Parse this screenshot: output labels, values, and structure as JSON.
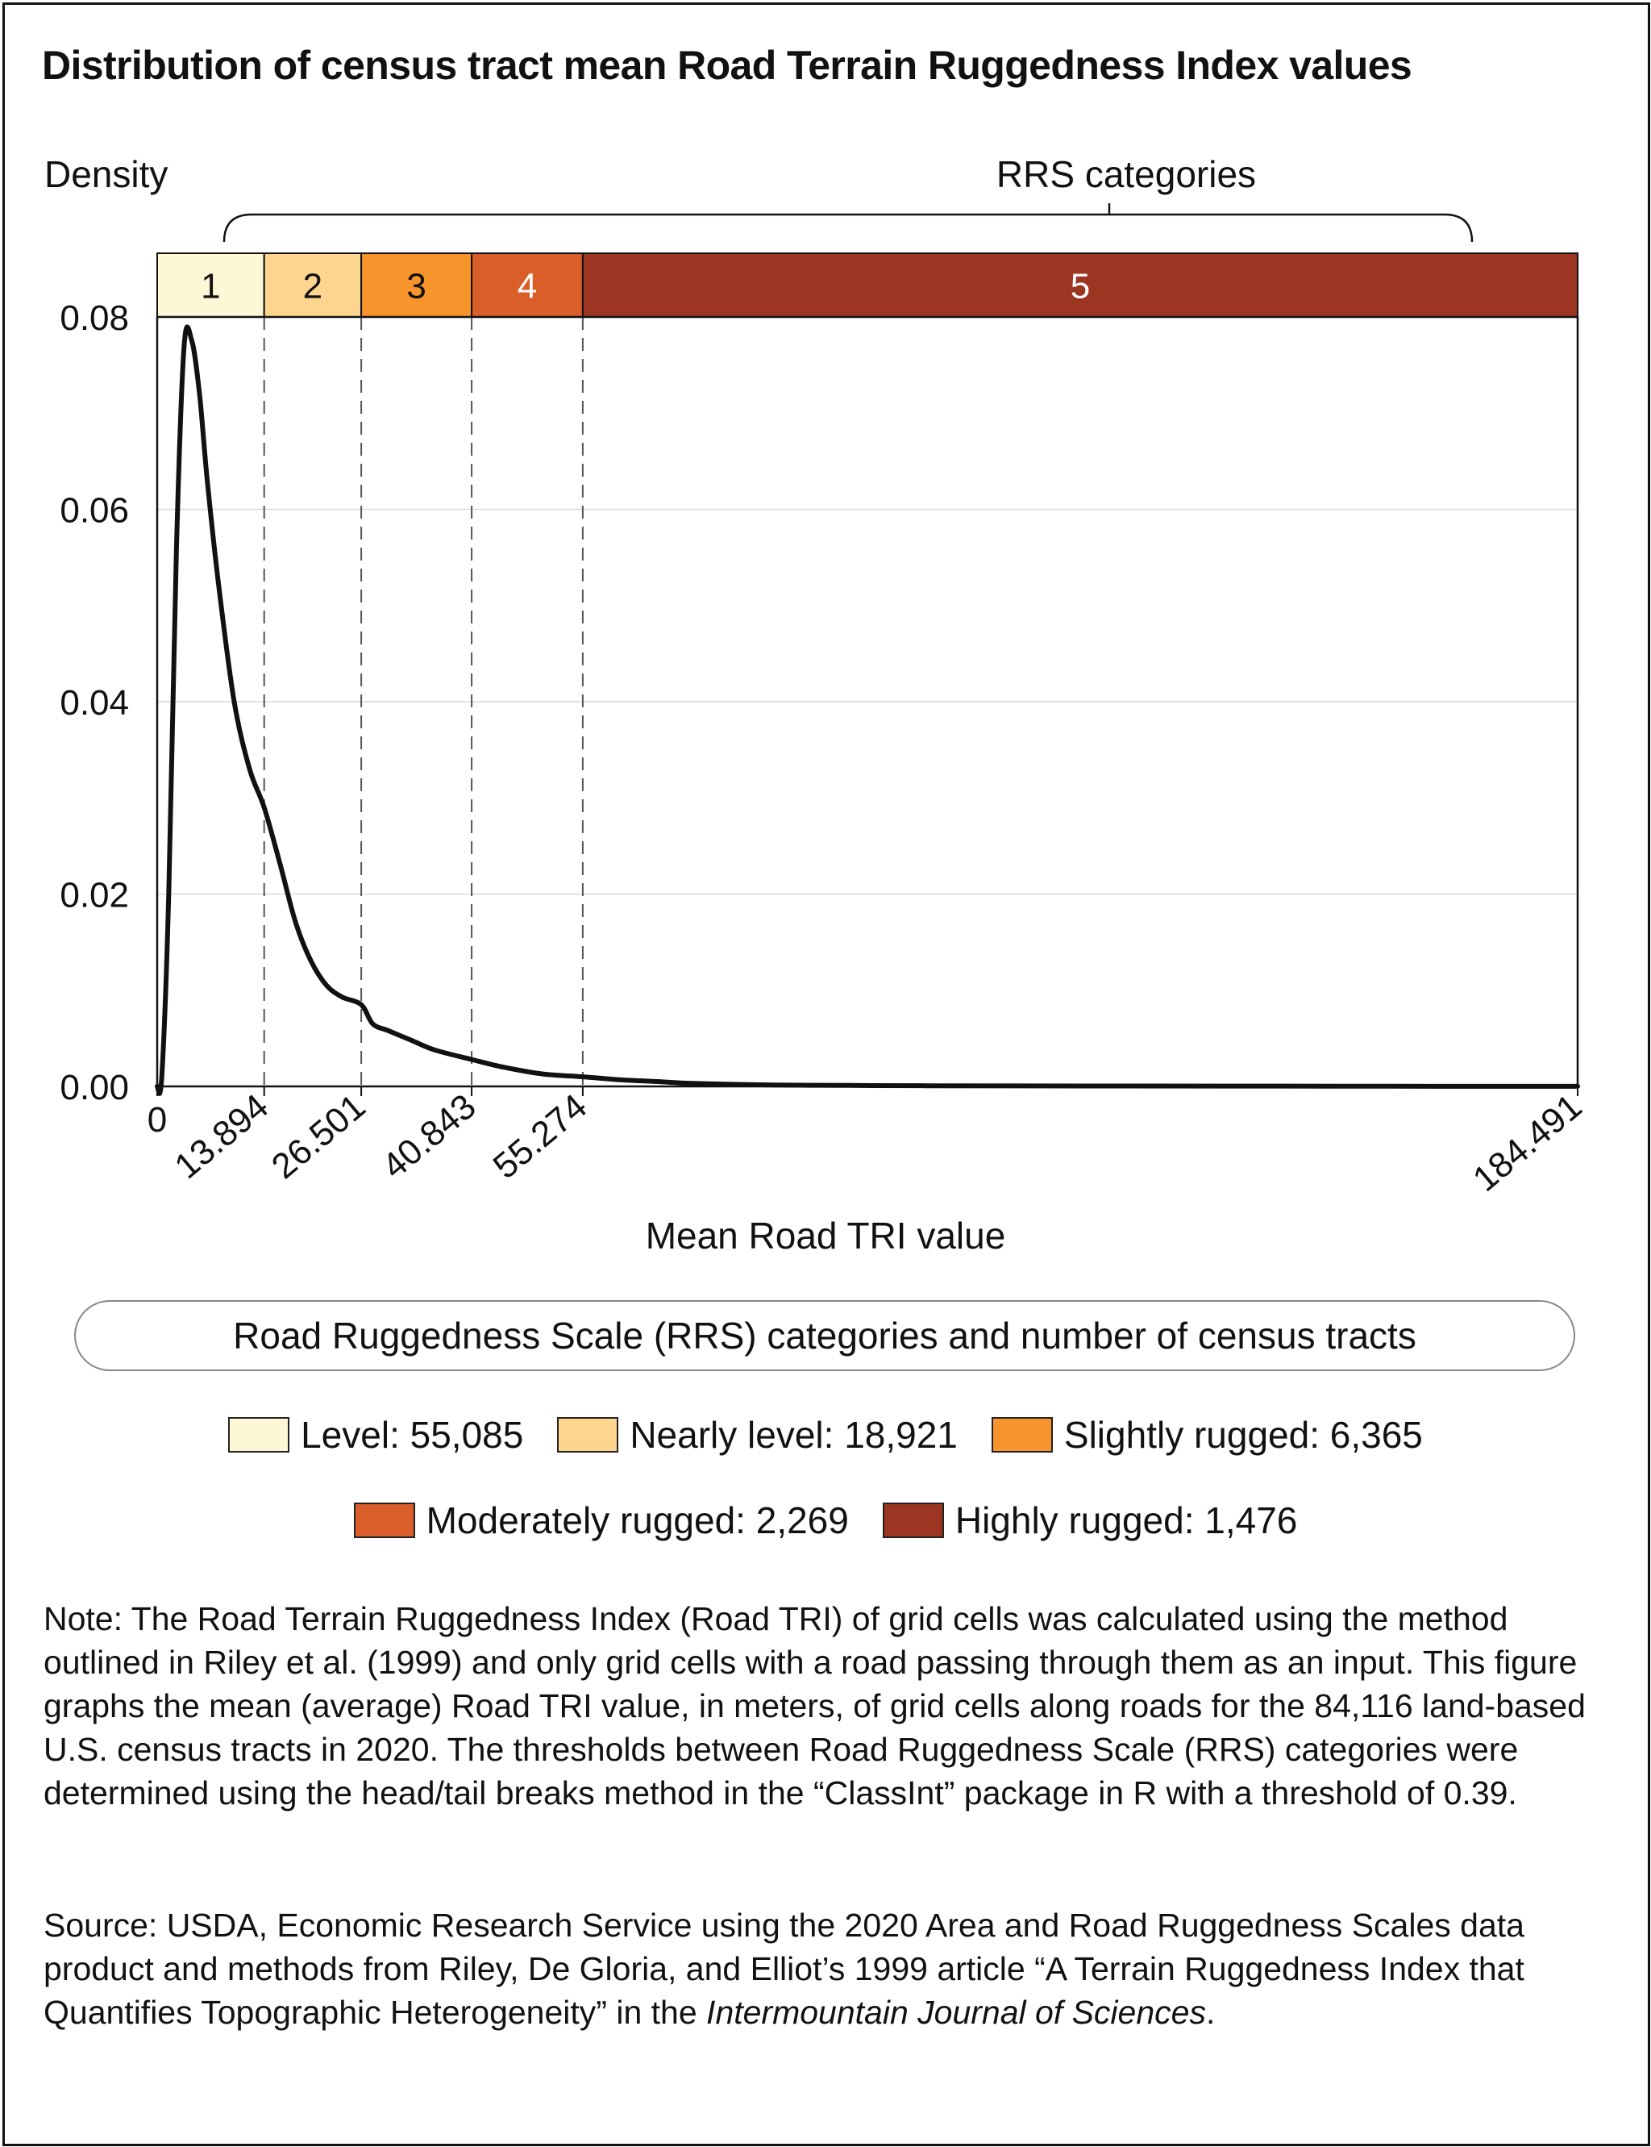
{
  "title": "Distribution of census tract mean Road Terrain Ruggedness Index values",
  "chart_data": {
    "type": "line",
    "ylabel": "Density",
    "xlabel": "Mean Road TRI value",
    "ylim": [
      0,
      0.08
    ],
    "xlim": [
      0,
      184.491
    ],
    "ytick_labels": [
      "0.00",
      "0.02",
      "0.04",
      "0.06",
      "0.08"
    ],
    "yticks": [
      0,
      0.02,
      0.04,
      0.06,
      0.08
    ],
    "xtick_labels": [
      "0",
      "13.894",
      "26.501",
      "40.843",
      "55.274",
      "184.491"
    ],
    "xticks": [
      0,
      13.894,
      26.501,
      40.843,
      55.274,
      184.491
    ],
    "grid": true,
    "bracket_label": "RRS categories",
    "breaks": [
      0,
      13.894,
      26.501,
      40.843,
      55.274,
      184.491
    ],
    "categories": [
      {
        "label": "1",
        "name": "Level",
        "count": "55,085",
        "color": "#fdf7d6",
        "text_color": "#111111"
      },
      {
        "label": "2",
        "name": "Nearly level",
        "count": "18,921",
        "color": "#fed58f",
        "text_color": "#111111"
      },
      {
        "label": "3",
        "name": "Slightly rugged",
        "count": "6,365",
        "color": "#f7952c",
        "text_color": "#111111"
      },
      {
        "label": "4",
        "name": "Moderately rugged",
        "count": "2,269",
        "color": "#da5e2a",
        "text_color": "#ffffff"
      },
      {
        "label": "5",
        "name": "Highly rugged",
        "count": "1,476",
        "color": "#9c3522",
        "text_color": "#ffffff"
      }
    ],
    "series": [
      {
        "x": [
          0,
          0.6,
          1.5,
          2.5,
          3.5,
          4.5,
          5.5,
          6.5,
          8,
          10,
          12,
          13.894,
          16,
          18,
          20,
          22,
          24,
          26.501,
          28,
          30,
          33,
          36,
          40.843,
          45,
          50,
          55.274,
          60,
          65,
          70,
          80,
          90,
          100,
          120,
          140,
          160,
          184.491
        ],
        "y": [
          0,
          0.001,
          0.02,
          0.056,
          0.077,
          0.0775,
          0.072,
          0.063,
          0.052,
          0.04,
          0.033,
          0.029,
          0.023,
          0.017,
          0.013,
          0.0105,
          0.0093,
          0.0085,
          0.0065,
          0.0058,
          0.0048,
          0.0038,
          0.0028,
          0.002,
          0.0013,
          0.001,
          0.0007,
          0.0005,
          0.0003,
          0.00015,
          0.0001,
          7e-05,
          4e-05,
          3e-05,
          2e-05,
          1e-05
        ]
      }
    ],
    "line_color": "#111111"
  },
  "legend": {
    "title": "Road Ruggedness Scale (RRS) categories and number of census tracts",
    "items": [
      {
        "label": "Level: 55,085",
        "color": "#fdf7d6"
      },
      {
        "label": "Nearly level: 18,921",
        "color": "#fed58f"
      },
      {
        "label": "Slightly rugged: 6,365",
        "color": "#f7952c"
      },
      {
        "label": "Moderately rugged: 2,269",
        "color": "#da5e2a"
      },
      {
        "label": "Highly rugged: 1,476",
        "color": "#9c3522"
      }
    ]
  },
  "note": "Note: The Road Terrain Ruggedness Index (Road TRI) of grid cells was calculated using the method outlined in Riley et al. (1999) and only grid cells with a road passing through them as an input. This figure graphs the mean (average) Road TRI value, in meters, of grid cells along roads for the 84,116 land-based U.S. census tracts in 2020. The thresholds between Road Ruggedness Scale (RRS) categories were determined using the head/tail breaks method in the “ClassInt” package in R with a threshold of 0.39.",
  "source": {
    "text": "Source: USDA, Economic Research Service using the 2020 Area and Road Ruggedness Scales data product and methods from Riley, De Gloria, and Elliot’s 1999 article “A Terrain Ruggedness Index that Quantifies Topographic Heterogeneity” in the",
    "journal": "Intermountain Journal of Sciences",
    "end": "."
  }
}
